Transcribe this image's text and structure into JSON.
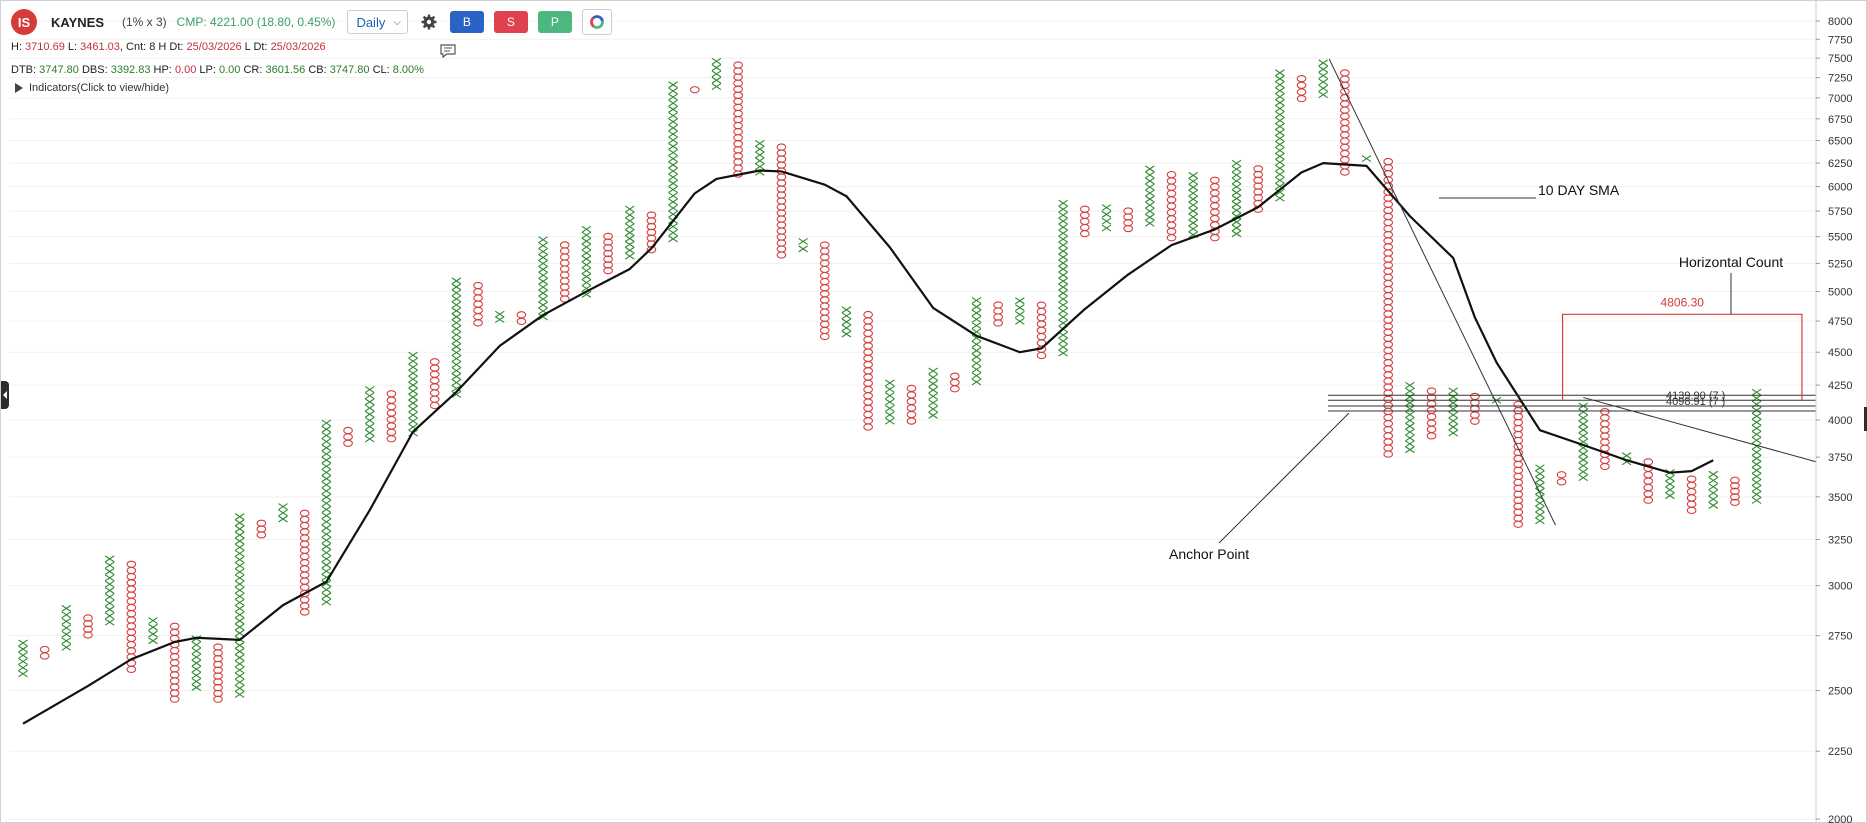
{
  "toolbar": {
    "logo_text": "IS",
    "symbol": "KAYNES",
    "multiplier": "(1% x 3)",
    "cmp": "CMP: 4221.00 (18.80, 0.45%)",
    "timeframe": "Daily",
    "buy_label": "B",
    "sell_label": "S",
    "p_label": "P"
  },
  "info": {
    "h_label": "H:",
    "h_val": "3710.69",
    "l_label": "L:",
    "l_val": "3461.03",
    "cnt_text": ", Cnt: 8 H Dt:",
    "h_dt": "25/03/2026",
    "l_dt_label": "L Dt:",
    "l_dt": "25/03/2026",
    "dtb_label": "DTB:",
    "dtb": "3747.80",
    "dbs_label": "DBS:",
    "dbs": "3392.83",
    "hp_label": "HP:",
    "hp": "0.00",
    "lp_label": "LP:",
    "lp": "0.00",
    "cr_label": "CR:",
    "cr": "3601.56",
    "cb_label": "CB:",
    "cb": "3747.80",
    "cl_label": "CL:",
    "cl": "8.00%"
  },
  "indicators_label": "Indicators(Click to view/hide)",
  "colors": {
    "x": "#2e8b2e",
    "o": "#d43c3c",
    "sma": "#111111",
    "count": "#d43c3c"
  },
  "annotations": {
    "sma_label": "10 DAY SMA",
    "count_title": "Horizontal Count",
    "count_value": "4806.30",
    "anchor_label": "Anchor Point",
    "level1": "4139.90 (7 )",
    "level2": "4098.91 (7 )"
  },
  "chart_data": {
    "type": "point-and-figure",
    "box_pct": 1,
    "reversal": 3,
    "y_axis": {
      "ticks": [
        2000,
        2250,
        2500,
        2750,
        3000,
        3250,
        3500,
        3750,
        4000,
        4250,
        4500,
        4750,
        5000,
        5250,
        5500,
        5750,
        6000,
        6250,
        6500,
        6750,
        7000,
        7250,
        7500,
        7750,
        8000
      ],
      "labels": [
        "2000",
        "2250",
        "2500",
        "2750",
        "3000",
        "3250",
        "3500",
        "3750",
        "4000",
        "4250",
        "4500",
        "4750",
        "5000",
        "5250",
        "5500",
        "5750",
        "6000",
        "6250",
        "6500",
        "6750",
        "7000",
        "7250",
        "7500",
        "7750",
        "8000"
      ],
      "scale": "log",
      "range": [
        2000,
        8000
      ]
    },
    "columns": [
      {
        "t": "X",
        "lo": 2560,
        "hi": 2730
      },
      {
        "t": "O",
        "lo": 2640,
        "hi": 2700
      },
      {
        "t": "X",
        "lo": 2680,
        "hi": 2900
      },
      {
        "t": "O",
        "lo": 2740,
        "hi": 2850
      },
      {
        "t": "X",
        "lo": 2800,
        "hi": 3160
      },
      {
        "t": "O",
        "lo": 2580,
        "hi": 3130
      },
      {
        "t": "X",
        "lo": 2710,
        "hi": 2840
      },
      {
        "t": "O",
        "lo": 2450,
        "hi": 2810
      },
      {
        "t": "X",
        "lo": 2500,
        "hi": 2750
      },
      {
        "t": "O",
        "lo": 2450,
        "hi": 2710
      },
      {
        "t": "X",
        "lo": 2470,
        "hi": 3400
      },
      {
        "t": "O",
        "lo": 3260,
        "hi": 3360
      },
      {
        "t": "X",
        "lo": 3350,
        "hi": 3460
      },
      {
        "t": "O",
        "lo": 2850,
        "hi": 3420
      },
      {
        "t": "X",
        "lo": 2900,
        "hi": 4000
      },
      {
        "t": "O",
        "lo": 3820,
        "hi": 3950
      },
      {
        "t": "X",
        "lo": 3850,
        "hi": 4240
      },
      {
        "t": "O",
        "lo": 3850,
        "hi": 4210
      },
      {
        "t": "X",
        "lo": 3890,
        "hi": 4500
      },
      {
        "t": "O",
        "lo": 4080,
        "hi": 4450
      },
      {
        "t": "X",
        "lo": 4160,
        "hi": 5120
      },
      {
        "t": "O",
        "lo": 4710,
        "hi": 5080
      },
      {
        "t": "X",
        "lo": 4740,
        "hi": 4830
      },
      {
        "t": "O",
        "lo": 4720,
        "hi": 4830
      },
      {
        "t": "X",
        "lo": 4760,
        "hi": 5500
      },
      {
        "t": "O",
        "lo": 4910,
        "hi": 5450
      },
      {
        "t": "X",
        "lo": 4950,
        "hi": 5600
      },
      {
        "t": "O",
        "lo": 5160,
        "hi": 5530
      },
      {
        "t": "X",
        "lo": 5290,
        "hi": 5800
      },
      {
        "t": "O",
        "lo": 5350,
        "hi": 5740
      },
      {
        "t": "X",
        "lo": 5450,
        "hi": 7200
      },
      {
        "t": "O",
        "lo": 7050,
        "hi": 7150
      },
      {
        "t": "X",
        "lo": 7100,
        "hi": 7500
      },
      {
        "t": "O",
        "lo": 6100,
        "hi": 7450
      },
      {
        "t": "X",
        "lo": 6120,
        "hi": 6500
      },
      {
        "t": "O",
        "lo": 5300,
        "hi": 6460
      },
      {
        "t": "X",
        "lo": 5350,
        "hi": 5490
      },
      {
        "t": "O",
        "lo": 4600,
        "hi": 5450
      },
      {
        "t": "X",
        "lo": 4620,
        "hi": 4870
      },
      {
        "t": "O",
        "lo": 3930,
        "hi": 4830
      },
      {
        "t": "X",
        "lo": 3970,
        "hi": 4290
      },
      {
        "t": "O",
        "lo": 3970,
        "hi": 4250
      },
      {
        "t": "X",
        "lo": 4010,
        "hi": 4380
      },
      {
        "t": "O",
        "lo": 4200,
        "hi": 4340
      },
      {
        "t": "X",
        "lo": 4250,
        "hi": 4950
      },
      {
        "t": "O",
        "lo": 4710,
        "hi": 4910
      },
      {
        "t": "X",
        "lo": 4720,
        "hi": 4950
      },
      {
        "t": "O",
        "lo": 4450,
        "hi": 4910
      },
      {
        "t": "X",
        "lo": 4470,
        "hi": 5860
      },
      {
        "t": "O",
        "lo": 5500,
        "hi": 5800
      },
      {
        "t": "X",
        "lo": 5550,
        "hi": 5820
      },
      {
        "t": "O",
        "lo": 5550,
        "hi": 5780
      },
      {
        "t": "X",
        "lo": 5600,
        "hi": 6220
      },
      {
        "t": "O",
        "lo": 5460,
        "hi": 6160
      },
      {
        "t": "X",
        "lo": 5490,
        "hi": 6150
      },
      {
        "t": "O",
        "lo": 5460,
        "hi": 6100
      },
      {
        "t": "X",
        "lo": 5500,
        "hi": 6280
      },
      {
        "t": "O",
        "lo": 5740,
        "hi": 6220
      },
      {
        "t": "X",
        "lo": 5850,
        "hi": 7350
      },
      {
        "t": "O",
        "lo": 6950,
        "hi": 7280
      },
      {
        "t": "X",
        "lo": 7000,
        "hi": 7480
      },
      {
        "t": "O",
        "lo": 6120,
        "hi": 7350
      },
      {
        "t": "X",
        "lo": 6250,
        "hi": 6350
      },
      {
        "t": "O",
        "lo": 3750,
        "hi": 6300
      },
      {
        "t": "X",
        "lo": 3780,
        "hi": 4270
      },
      {
        "t": "O",
        "lo": 3870,
        "hi": 4230
      },
      {
        "t": "X",
        "lo": 3890,
        "hi": 4230
      },
      {
        "t": "O",
        "lo": 3970,
        "hi": 4190
      },
      {
        "t": "X",
        "lo": 4110,
        "hi": 4170
      },
      {
        "t": "O",
        "lo": 3320,
        "hi": 4130
      },
      {
        "t": "X",
        "lo": 3340,
        "hi": 3700
      },
      {
        "t": "O",
        "lo": 3570,
        "hi": 3660
      },
      {
        "t": "X",
        "lo": 3600,
        "hi": 4120
      },
      {
        "t": "O",
        "lo": 3670,
        "hi": 4080
      },
      {
        "t": "X",
        "lo": 3700,
        "hi": 3780
      },
      {
        "t": "O",
        "lo": 3460,
        "hi": 3740
      },
      {
        "t": "X",
        "lo": 3490,
        "hi": 3670
      },
      {
        "t": "O",
        "lo": 3400,
        "hi": 3630
      },
      {
        "t": "X",
        "lo": 3430,
        "hi": 3660
      },
      {
        "t": "O",
        "lo": 3450,
        "hi": 3620
      },
      {
        "t": "X",
        "lo": 3460,
        "hi": 4220
      }
    ],
    "sma": [
      [
        0,
        2360
      ],
      [
        3,
        2520
      ],
      [
        5,
        2640
      ],
      [
        7,
        2720
      ],
      [
        8,
        2740
      ],
      [
        10,
        2730
      ],
      [
        12,
        2900
      ],
      [
        14,
        3020
      ],
      [
        16,
        3420
      ],
      [
        18,
        3920
      ],
      [
        20,
        4200
      ],
      [
        22,
        4550
      ],
      [
        24,
        4800
      ],
      [
        26,
        5000
      ],
      [
        28,
        5200
      ],
      [
        29,
        5390
      ],
      [
        31,
        5930
      ],
      [
        32,
        6080
      ],
      [
        34,
        6170
      ],
      [
        35,
        6160
      ],
      [
        37,
        6020
      ],
      [
        38,
        5900
      ],
      [
        40,
        5400
      ],
      [
        42,
        4860
      ],
      [
        44,
        4630
      ],
      [
        46,
        4500
      ],
      [
        47,
        4530
      ],
      [
        49,
        4850
      ],
      [
        51,
        5150
      ],
      [
        53,
        5420
      ],
      [
        55,
        5570
      ],
      [
        57,
        5790
      ],
      [
        59,
        6150
      ],
      [
        60,
        6250
      ],
      [
        62,
        6220
      ],
      [
        64,
        5700
      ],
      [
        66,
        5300
      ],
      [
        67,
        4780
      ],
      [
        68,
        4420
      ],
      [
        70,
        3930
      ],
      [
        72,
        3830
      ],
      [
        74,
        3730
      ],
      [
        76,
        3650
      ],
      [
        77,
        3660
      ],
      [
        78,
        3730
      ]
    ],
    "count_row": 4139.9,
    "count_target": 4806.3,
    "level_lines": [
      4139.9,
      4098.91
    ]
  }
}
